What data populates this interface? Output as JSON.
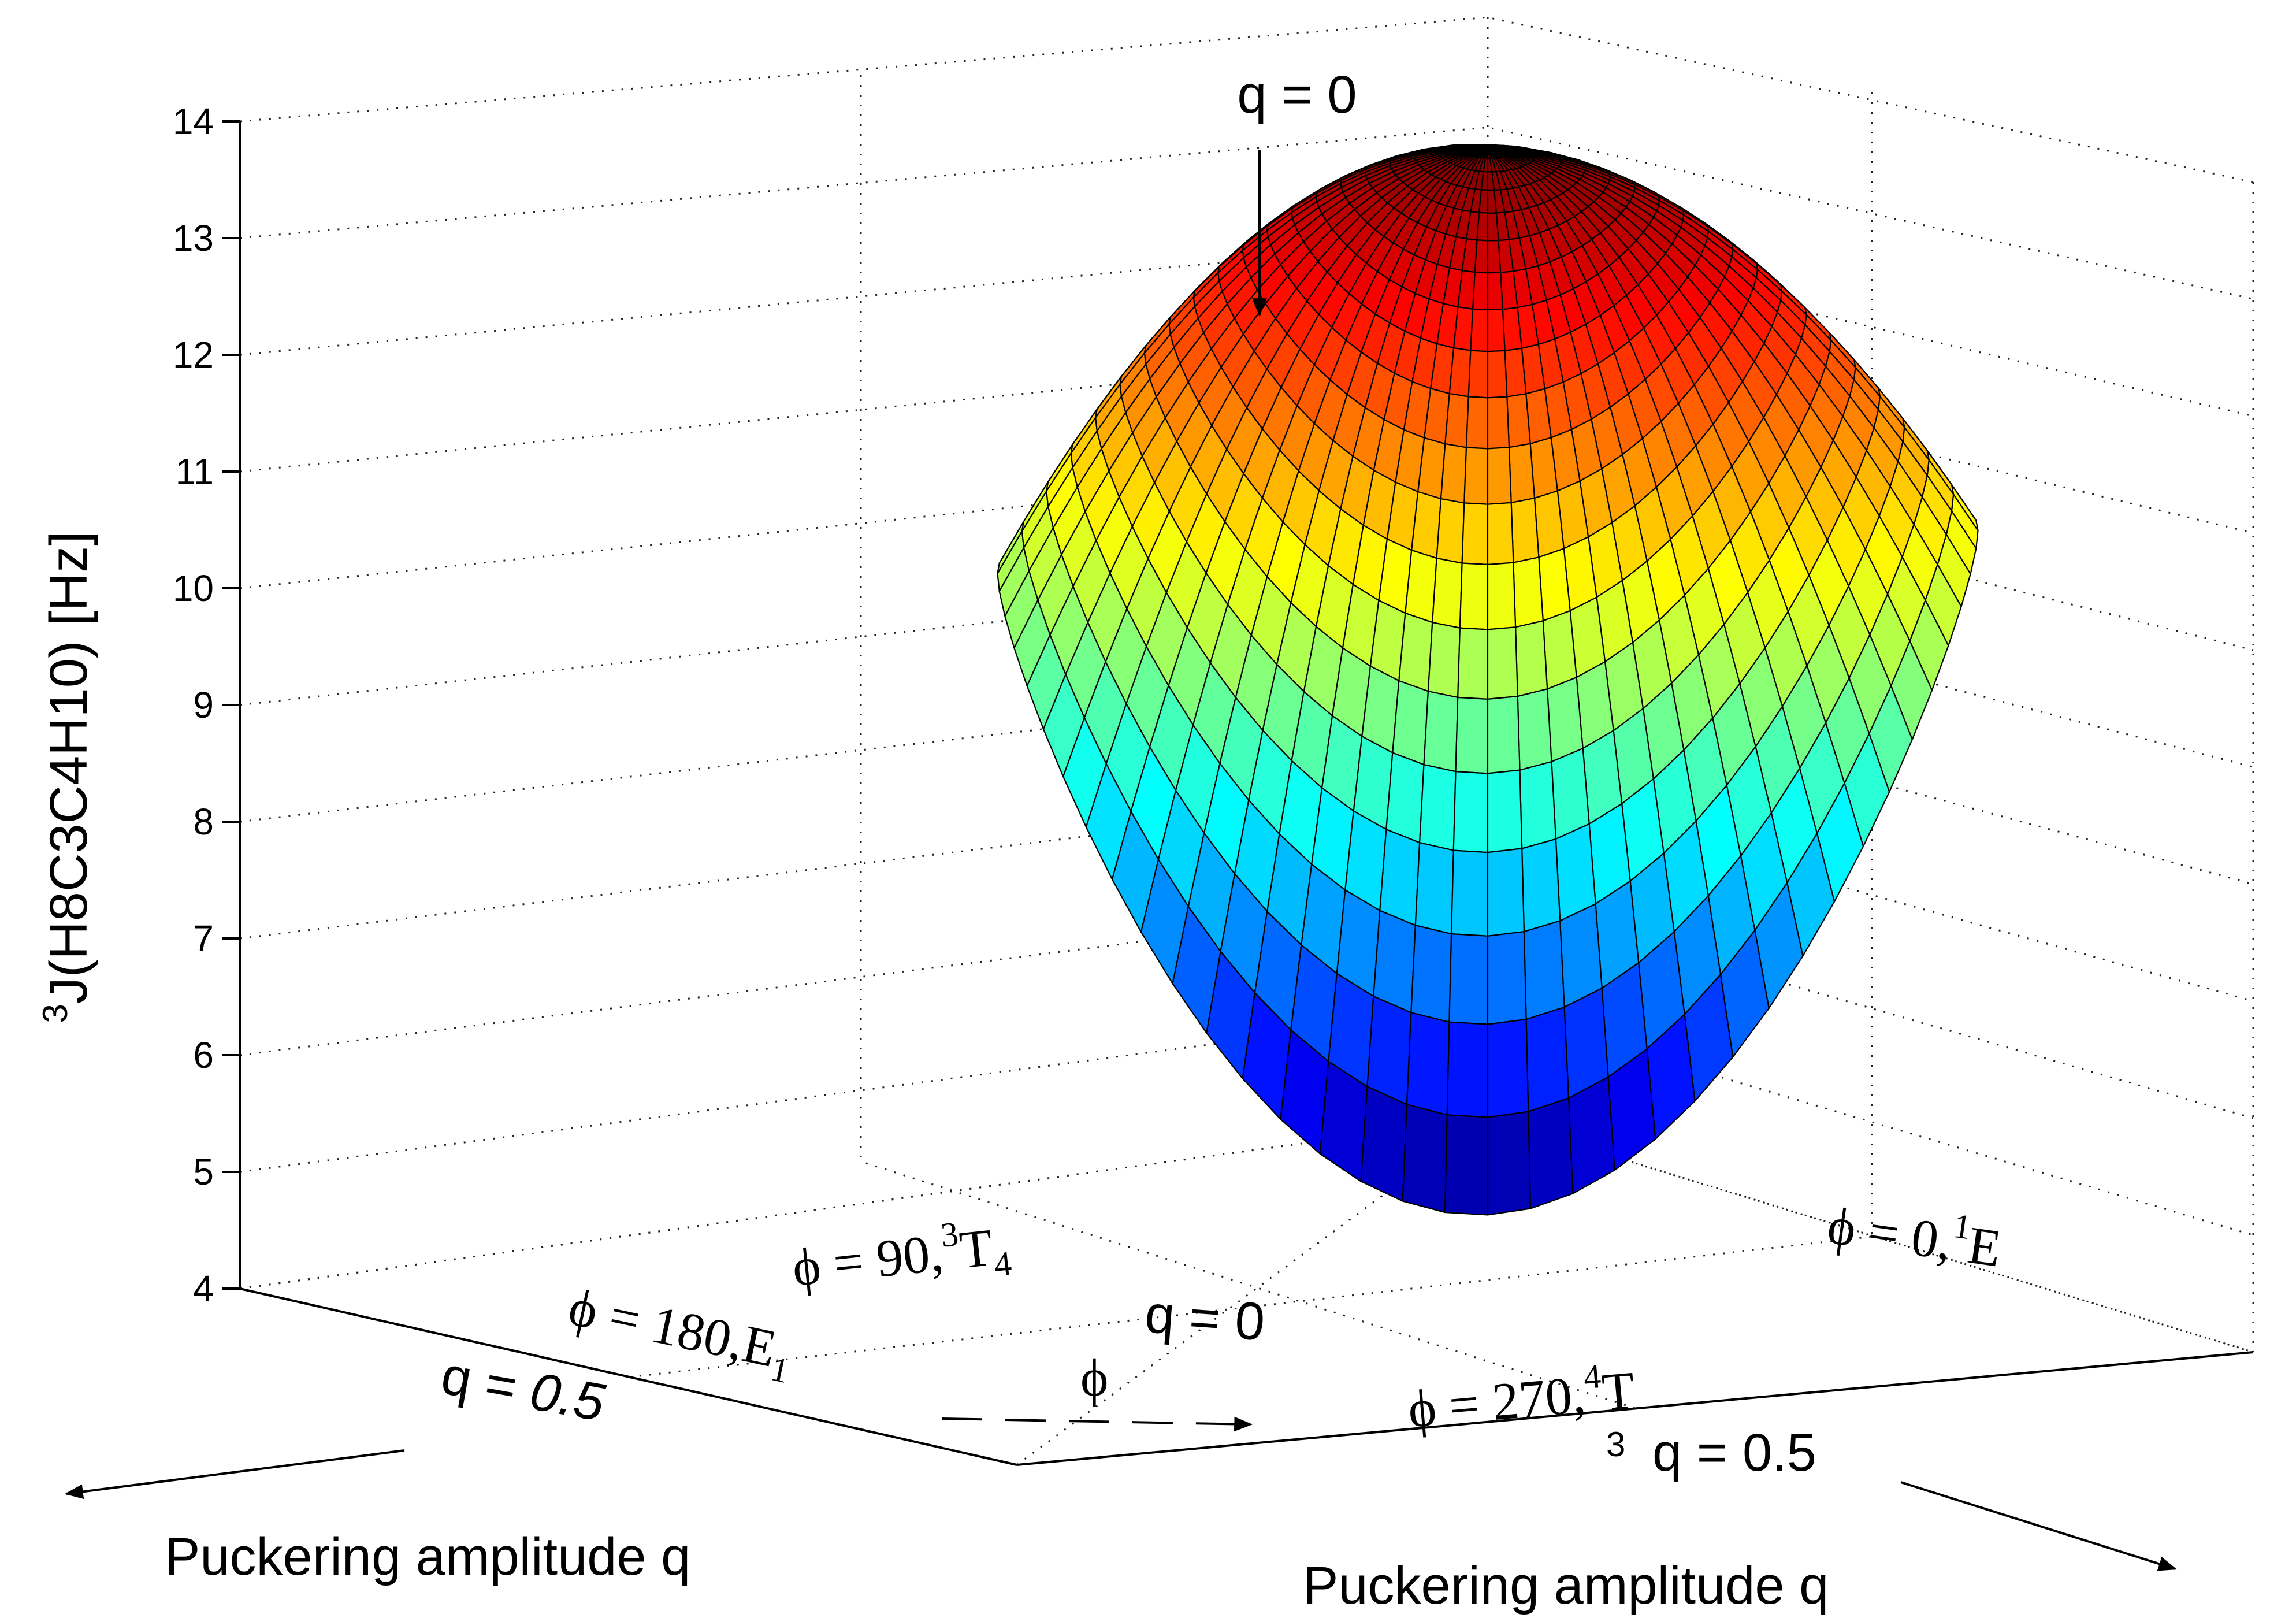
{
  "chart_data": {
    "type": "surface",
    "zlabel": "3J(H8C3C4H10) [Hz]",
    "zlabel_superscript": "3",
    "zlabel_main": "J(H8C3C4H10) [Hz]",
    "zlim": [
      4,
      14
    ],
    "z_ticks": [
      "4",
      "5",
      "6",
      "7",
      "8",
      "9",
      "10",
      "11",
      "12",
      "13",
      "14"
    ],
    "x_axis_label": "Puckering amplitude q",
    "y_axis_label": "Puckering amplitude q",
    "grid": true,
    "colormap": "jet",
    "series": [
      {
        "phi": [
          0,
          90,
          180,
          270
        ],
        "z_q0": 12.3,
        "z_q05": [
          9.2,
          4.8,
          8.5,
          4.3
        ]
      }
    ],
    "annotations": {
      "q0_top": "q = 0",
      "q0_base": "q = 0",
      "q05_left_q": "q = ",
      "q05_left_val": "0.5",
      "q05_right": "q = 0.5",
      "q05_right_sub": "3",
      "phi_symbol": "ϕ",
      "phi0_main": "ϕ = 0,",
      "phi0_sup": "1",
      "phi0_tail": "E",
      "phi90_main": "ϕ = 90,",
      "phi90_sup": "3",
      "phi90_tail": "T",
      "phi90_sub": "4",
      "phi180_main": "ϕ = 180,E",
      "phi180_sub": "1",
      "phi270_main": "ϕ = 270,",
      "phi270_sup": "4",
      "phi270_tail": "T"
    }
  }
}
